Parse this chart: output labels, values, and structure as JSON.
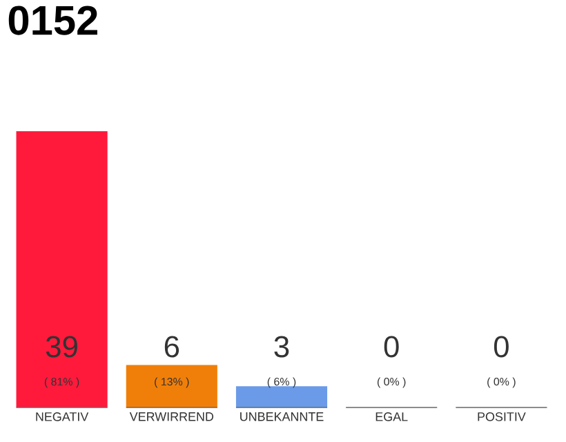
{
  "chart_data": {
    "type": "bar",
    "title": "0152",
    "categories": [
      "NEGATIV",
      "VERWIRREND",
      "UNBEKANNTE",
      "EGAL",
      "POSITIV"
    ],
    "values": [
      39,
      6,
      3,
      0,
      0
    ],
    "colors": [
      "#ff1a3c",
      "#f07f09",
      "#6b9be8",
      "#aaaaaa",
      "#aaaaaa"
    ],
    "value_labels": [
      "39",
      "6",
      "3",
      "0",
      "0"
    ],
    "annotations": [
      "( 81% )",
      "( 13% )",
      "( 6% )",
      "( 0% )",
      "( 0% )"
    ]
  }
}
